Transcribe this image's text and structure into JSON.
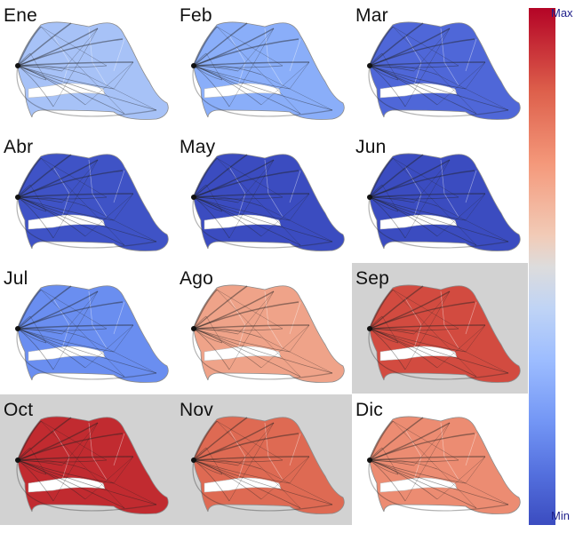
{
  "panels": [
    {
      "month": "Ene",
      "fill": "#a7c2f7",
      "hl": false
    },
    {
      "month": "Feb",
      "fill": "#8aaef9",
      "hl": false
    },
    {
      "month": "Mar",
      "fill": "#4f67d8",
      "hl": false
    },
    {
      "month": "Abr",
      "fill": "#3f53c6",
      "hl": false
    },
    {
      "month": "May",
      "fill": "#3b4cc0",
      "hl": false
    },
    {
      "month": "Jun",
      "fill": "#3b4cc0",
      "hl": false
    },
    {
      "month": "Jul",
      "fill": "#6a8ef0",
      "hl": false
    },
    {
      "month": "Ago",
      "fill": "#efa389",
      "hl": false
    },
    {
      "month": "Sep",
      "fill": "#d24b40",
      "hl": true
    },
    {
      "month": "Oct",
      "fill": "#c12b30",
      "hl": true
    },
    {
      "month": "Nov",
      "fill": "#de6a53",
      "hl": true
    },
    {
      "month": "Dic",
      "fill": "#ec8c72",
      "hl": false
    }
  ],
  "colorbar": {
    "max_label": "Max",
    "min_label": "Min"
  }
}
